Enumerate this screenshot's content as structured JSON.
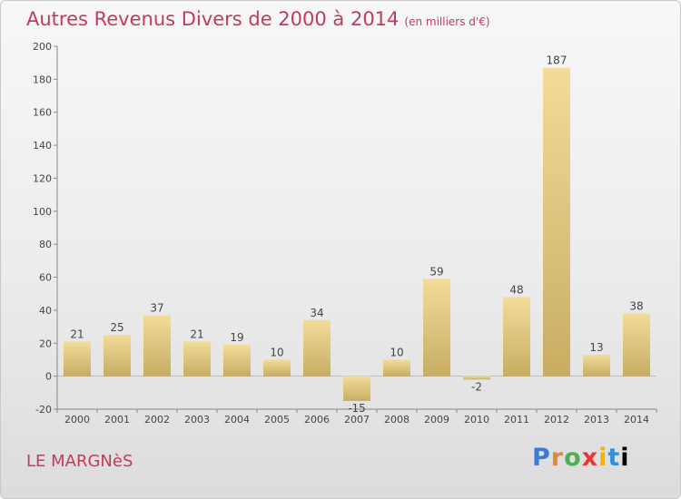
{
  "title": "Autres Revenus Divers de 2000 à 2014",
  "title_unit": "(en milliers d'€)",
  "commune": "LE MARGNèS",
  "logo_text": "Proxiti",
  "colors": {
    "title": "#c23b5a",
    "bar_light": "#f3dc99",
    "bar_dark": "#c8ac62"
  },
  "chart_data": {
    "type": "bar",
    "title": "Autres Revenus Divers de 2000 à 2014",
    "subtitle": "(en milliers d'€)",
    "categories": [
      "2000",
      "2001",
      "2002",
      "2003",
      "2004",
      "2005",
      "2006",
      "2007",
      "2008",
      "2009",
      "2010",
      "2011",
      "2012",
      "2013",
      "2014"
    ],
    "values": [
      21,
      25,
      37,
      21,
      19,
      10,
      34,
      -15,
      10,
      59,
      -2,
      48,
      187,
      13,
      38
    ],
    "xlabel": "",
    "ylabel": "",
    "ylim": [
      -20,
      200
    ],
    "yticks": [
      -20,
      0,
      20,
      40,
      60,
      80,
      100,
      120,
      140,
      160,
      180,
      200
    ],
    "grid": false,
    "legend": "none"
  }
}
